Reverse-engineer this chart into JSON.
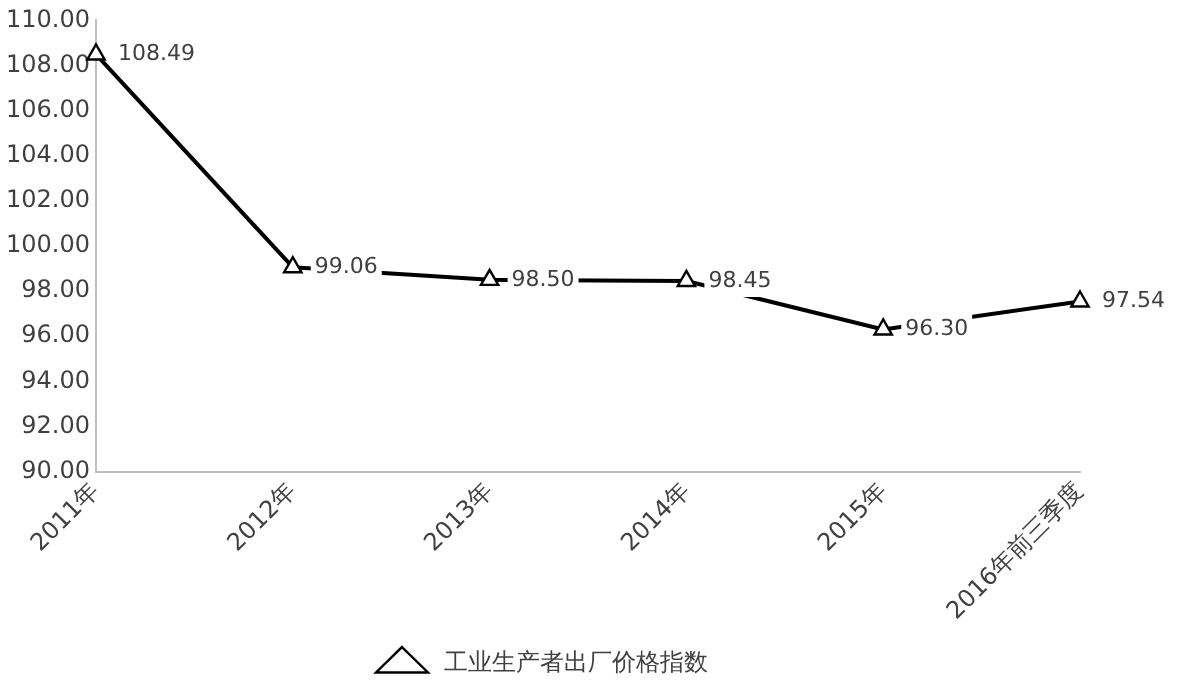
{
  "chart_data": {
    "type": "line",
    "categories": [
      "2011年",
      "2012年",
      "2013年",
      "2014年",
      "2015年",
      "2016年前三季度"
    ],
    "series": [
      {
        "name": "工业生产者出厂价格指数",
        "color": "#000000",
        "values": [
          108.49,
          99.06,
          98.5,
          98.45,
          96.3,
          97.54
        ],
        "value_labels": [
          "108.49",
          "99.06",
          "98.50",
          "98.45",
          "96.30",
          "97.54"
        ]
      }
    ],
    "ylim": [
      90,
      110
    ],
    "yticks": [
      {
        "value": 90,
        "label": "90.00"
      },
      {
        "value": 92,
        "label": "92.00"
      },
      {
        "value": 94,
        "label": "94.00"
      },
      {
        "value": 96,
        "label": "96.00"
      },
      {
        "value": 98,
        "label": "98.00"
      },
      {
        "value": 100,
        "label": "100.00"
      },
      {
        "value": 102,
        "label": "102.00"
      },
      {
        "value": 104,
        "label": "104.00"
      },
      {
        "value": 106,
        "label": "106.00"
      },
      {
        "value": 108,
        "label": "108.00"
      },
      {
        "value": 110,
        "label": "110.00"
      }
    ],
    "legend": "bottom",
    "marker": "triangle",
    "line_style": "solid",
    "grid": false
  }
}
